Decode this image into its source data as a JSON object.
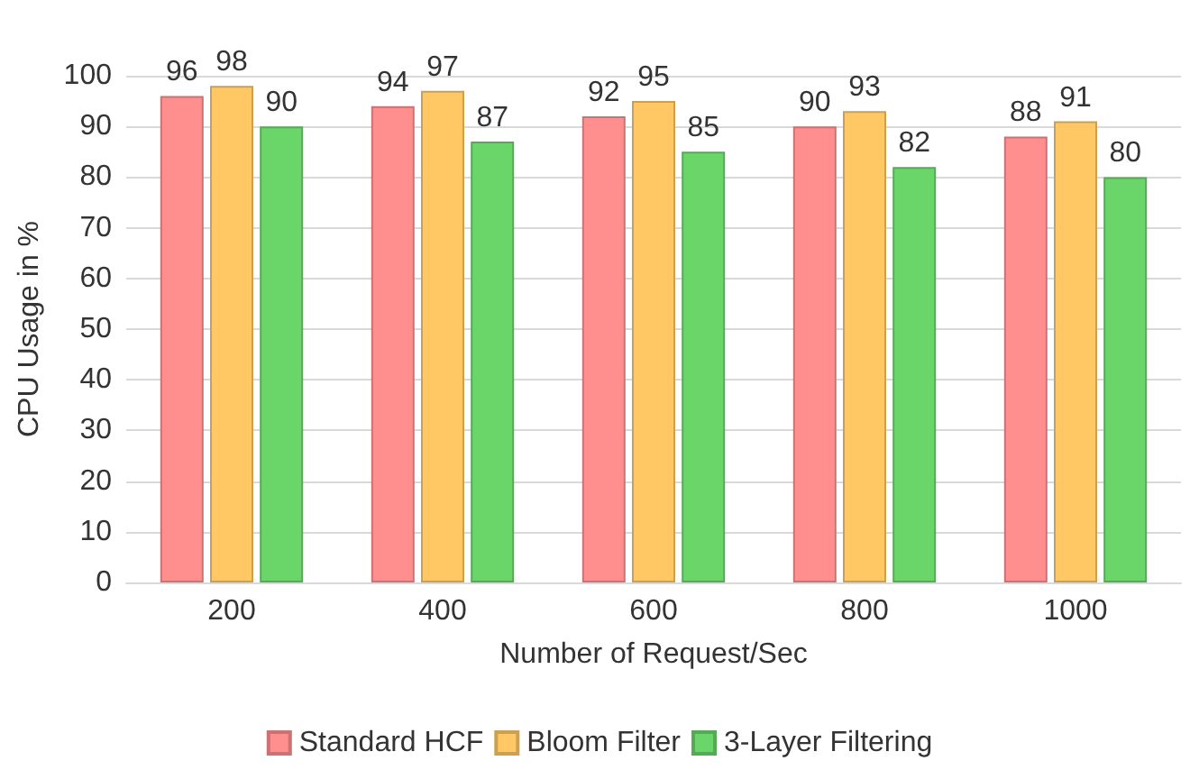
{
  "chart_data": {
    "type": "bar",
    "xlabel": "Number of Request/Sec",
    "ylabel": "CPU Usage in %",
    "categories": [
      "200",
      "400",
      "600",
      "800",
      "1000"
    ],
    "series": [
      {
        "name": "Standard HCF",
        "color": "#ff8f8f",
        "values": [
          96,
          94,
          92,
          90,
          88
        ]
      },
      {
        "name": "Bloom Filter",
        "color": "#ffc864",
        "values": [
          98,
          97,
          95,
          93,
          91
        ]
      },
      {
        "name": "3-Layer Filtering",
        "color": "#6ad66a",
        "values": [
          90,
          87,
          85,
          82,
          80
        ]
      }
    ],
    "ylim": [
      0,
      100
    ],
    "yticks": [
      0,
      10,
      20,
      30,
      40,
      50,
      60,
      70,
      80,
      90,
      100
    ],
    "grid": "y",
    "legend": "bottom",
    "data_labels": true
  }
}
